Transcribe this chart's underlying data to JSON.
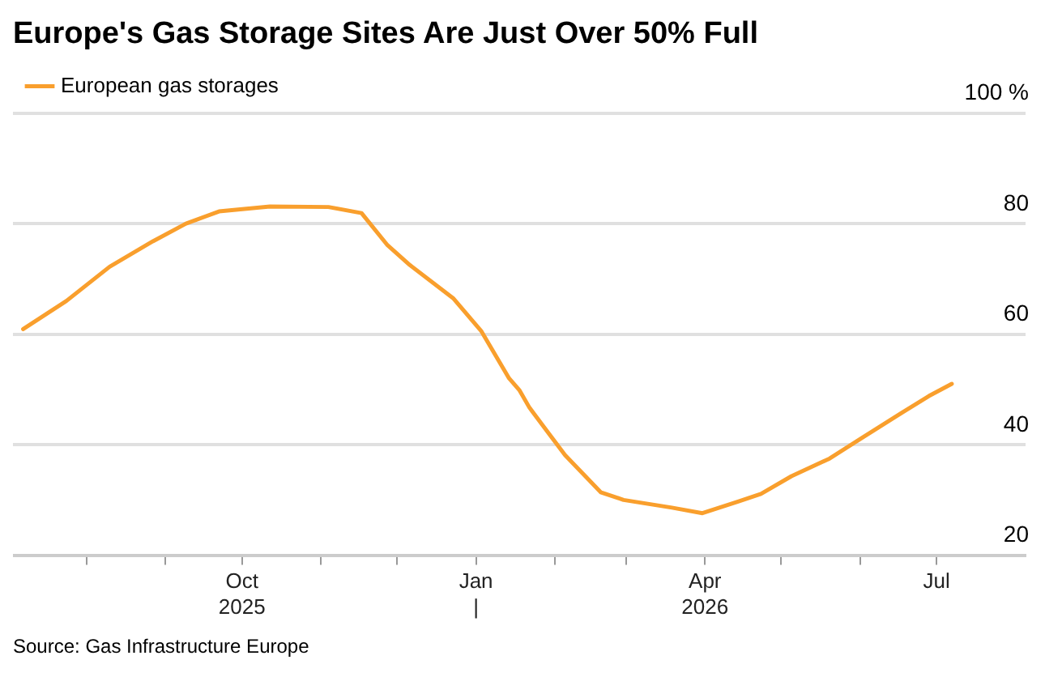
{
  "chart_data": {
    "type": "line",
    "title": "Europe's Gas Storage Sites Are Just Over 50% Full",
    "x": [
      "2025-07-07",
      "2025-07-24",
      "2025-08-10",
      "2025-08-27",
      "2025-09-09",
      "2025-09-22",
      "2025-10-12",
      "2025-11-04",
      "2025-11-17",
      "2025-11-27",
      "2025-12-06",
      "2025-12-23",
      "2026-01-03",
      "2026-01-14",
      "2026-01-18",
      "2026-01-22",
      "2026-01-29",
      "2026-02-05",
      "2026-02-19",
      "2026-02-28",
      "2026-03-19",
      "2026-03-31",
      "2026-04-14",
      "2026-04-23",
      "2026-05-05",
      "2026-05-20",
      "2026-06-02",
      "2026-06-15",
      "2026-06-28",
      "2026-07-07"
    ],
    "series": [
      {
        "name": "European gas storages",
        "color": "#f99f2d",
        "values": [
          60.9,
          66.0,
          72.2,
          76.8,
          80.0,
          82.2,
          83.1,
          83.0,
          81.9,
          76.2,
          72.5,
          66.5,
          60.6,
          52.0,
          49.9,
          46.7,
          42.4,
          38.1,
          31.4,
          30.0,
          28.6,
          27.6,
          29.7,
          31.1,
          34.3,
          37.5,
          41.3,
          45.1,
          48.8,
          51.0
        ]
      }
    ],
    "xlim": [
      "2025-07-03",
      "2026-08-05"
    ],
    "xticks": [
      {
        "value": "2025-08-01",
        "label": null
      },
      {
        "value": "2025-09-01",
        "label": null
      },
      {
        "value": "2025-10-01",
        "label": "Oct\n2025"
      },
      {
        "value": "2025-11-01",
        "label": null
      },
      {
        "value": "2025-12-01",
        "label": null
      },
      {
        "value": "2026-01-01",
        "label": "Jan\n|"
      },
      {
        "value": "2026-02-01",
        "label": null
      },
      {
        "value": "2026-03-01",
        "label": null
      },
      {
        "value": "2026-04-01",
        "label": "Apr\n2026"
      },
      {
        "value": "2026-05-01",
        "label": null
      },
      {
        "value": "2026-06-01",
        "label": null
      },
      {
        "value": "2026-07-01",
        "label": "Jul"
      }
    ],
    "ylim": [
      20,
      100
    ],
    "yticks": [
      20,
      40,
      60,
      80,
      {
        "value": 100,
        "label": "100 %"
      }
    ],
    "grid": "y",
    "legend": "top left",
    "marker": "none",
    "line_style": "solid",
    "annotations": [
      "Source: Gas Infrastructure Europe"
    ]
  }
}
